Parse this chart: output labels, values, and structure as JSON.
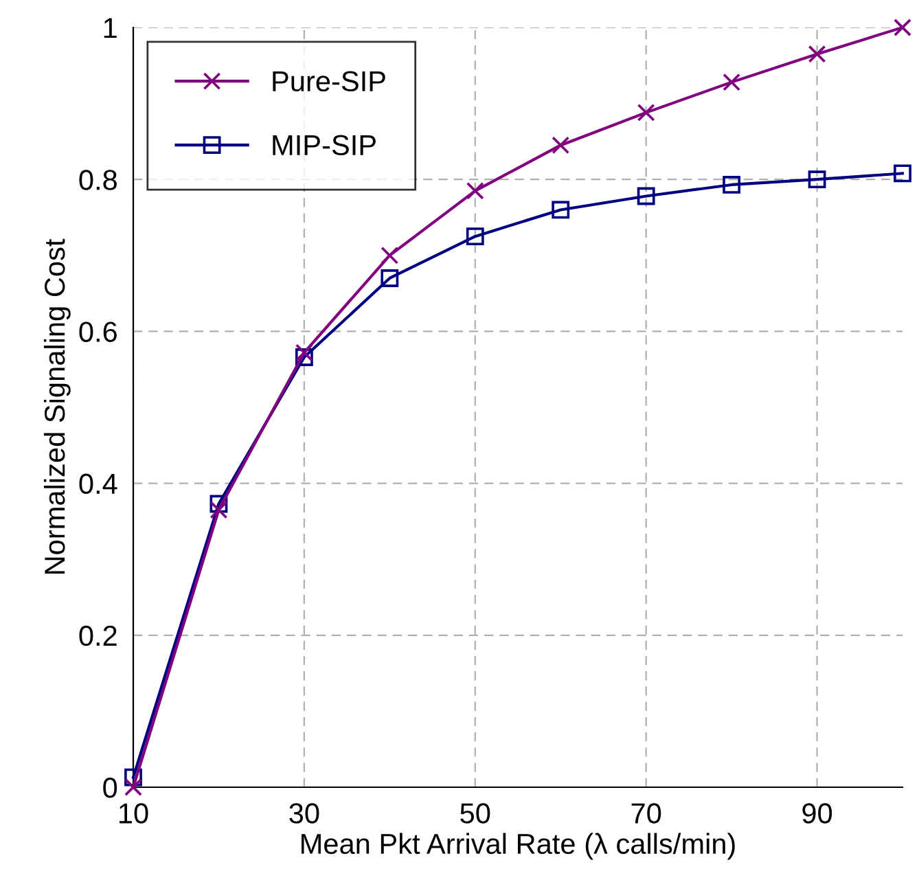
{
  "chart_data": {
    "type": "line",
    "xlabel": "Mean Pkt Arrival Rate (λ calls/min)",
    "ylabel": "Normalized Signaling Cost",
    "x": [
      10,
      20,
      30,
      40,
      50,
      60,
      70,
      80,
      90,
      100
    ],
    "series": [
      {
        "name": "Pure-SIP",
        "color": "#800080",
        "marker": "cross",
        "values": [
          0,
          0.365,
          0.572,
          0.7,
          0.785,
          0.845,
          0.888,
          0.928,
          0.965,
          1.0
        ]
      },
      {
        "name": "MIP-SIP",
        "color": "#000080",
        "marker": "square",
        "values": [
          0.013,
          0.373,
          0.566,
          0.67,
          0.725,
          0.76,
          0.778,
          0.793,
          0.8,
          0.808
        ]
      }
    ],
    "xlim": [
      10,
      100
    ],
    "xticks": [
      10,
      30,
      50,
      70,
      90
    ],
    "ylim": [
      0,
      1
    ],
    "yticks": [
      0,
      0.2,
      0.4,
      0.6,
      0.8,
      1
    ],
    "grid": true,
    "legend": "top left",
    "line_style": "solid"
  }
}
